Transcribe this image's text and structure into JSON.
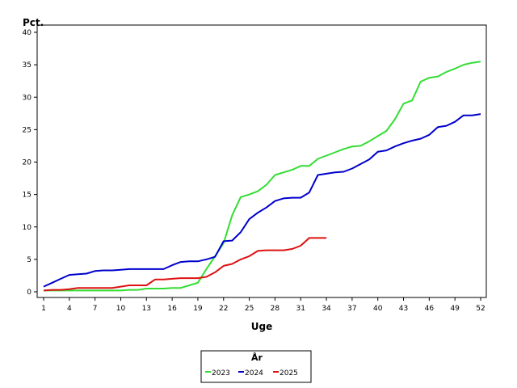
{
  "chart_data": {
    "type": "line",
    "title": "",
    "ylabel": "Pct.",
    "xlabel": "Uge",
    "xlim": [
      1,
      52
    ],
    "ylim": [
      0,
      40
    ],
    "x_ticks": [
      1,
      4,
      7,
      10,
      13,
      16,
      19,
      22,
      25,
      28,
      31,
      34,
      37,
      40,
      43,
      46,
      49,
      52
    ],
    "y_ticks": [
      0,
      5,
      10,
      15,
      20,
      25,
      30,
      35,
      40
    ],
    "legend": {
      "title": "År",
      "placement": "bottom-center"
    },
    "series": [
      {
        "name": "2023",
        "color": "#33dd33",
        "x": [
          1,
          2,
          3,
          4,
          5,
          6,
          7,
          8,
          9,
          10,
          11,
          12,
          13,
          14,
          15,
          16,
          17,
          18,
          19,
          20,
          21,
          22,
          23,
          24,
          25,
          26,
          27,
          28,
          29,
          30,
          31,
          32,
          33,
          34,
          35,
          36,
          37,
          38,
          39,
          40,
          41,
          42,
          43,
          44,
          45,
          46,
          47,
          48,
          49,
          50,
          51,
          52
        ],
        "y": [
          0.2,
          0.2,
          0.2,
          0.2,
          0.2,
          0.2,
          0.2,
          0.2,
          0.2,
          0.2,
          0.3,
          0.3,
          0.5,
          0.5,
          0.5,
          0.6,
          0.6,
          1.0,
          1.4,
          3.5,
          5.5,
          7.5,
          11.8,
          14.6,
          15.0,
          15.5,
          16.5,
          18.0,
          18.4,
          18.8,
          19.4,
          19.4,
          20.5,
          21.0,
          21.5,
          22.0,
          22.4,
          22.5,
          23.2,
          24.0,
          24.8,
          26.6,
          29.0,
          29.5,
          32.4,
          33.0,
          33.2,
          33.9,
          34.4,
          35.0,
          35.3,
          35.5
        ]
      },
      {
        "name": "2024",
        "color": "#0000cc",
        "x": [
          1,
          2,
          3,
          4,
          5,
          6,
          7,
          8,
          9,
          10,
          11,
          12,
          13,
          14,
          15,
          16,
          17,
          18,
          19,
          20,
          21,
          22,
          23,
          24,
          25,
          26,
          27,
          28,
          29,
          30,
          31,
          32,
          33,
          34,
          35,
          36,
          37,
          38,
          39,
          40,
          41,
          42,
          43,
          44,
          45,
          46,
          47,
          48,
          49,
          50,
          51,
          52
        ],
        "y": [
          0.8,
          1.4,
          2.0,
          2.6,
          2.7,
          2.8,
          3.2,
          3.3,
          3.3,
          3.4,
          3.5,
          3.5,
          3.5,
          3.5,
          3.5,
          4.1,
          4.6,
          4.7,
          4.7,
          5.0,
          5.4,
          7.8,
          7.9,
          9.2,
          11.2,
          12.2,
          13.0,
          14.0,
          14.4,
          14.5,
          14.5,
          15.3,
          18.0,
          18.2,
          18.4,
          18.5,
          19.0,
          19.7,
          20.4,
          21.6,
          21.8,
          22.4,
          22.9,
          23.3,
          23.6,
          24.2,
          25.4,
          25.6,
          26.2,
          27.2,
          27.2,
          27.4
        ]
      },
      {
        "name": "2025",
        "color": "#dd1111",
        "x": [
          1,
          2,
          3,
          4,
          5,
          6,
          7,
          8,
          9,
          10,
          11,
          12,
          13,
          14,
          15,
          16,
          17,
          18,
          19,
          20,
          21,
          22,
          23,
          24,
          25,
          26,
          27,
          28,
          29,
          30,
          31,
          32,
          33,
          34
        ],
        "y": [
          0.2,
          0.3,
          0.3,
          0.4,
          0.6,
          0.6,
          0.6,
          0.6,
          0.6,
          0.8,
          1.0,
          1.0,
          1.0,
          1.9,
          1.9,
          2.0,
          2.1,
          2.1,
          2.1,
          2.3,
          3.0,
          4.0,
          4.3,
          5.0,
          5.5,
          6.3,
          6.4,
          6.4,
          6.4,
          6.6,
          7.1,
          8.3,
          8.3,
          8.3
        ]
      }
    ]
  }
}
